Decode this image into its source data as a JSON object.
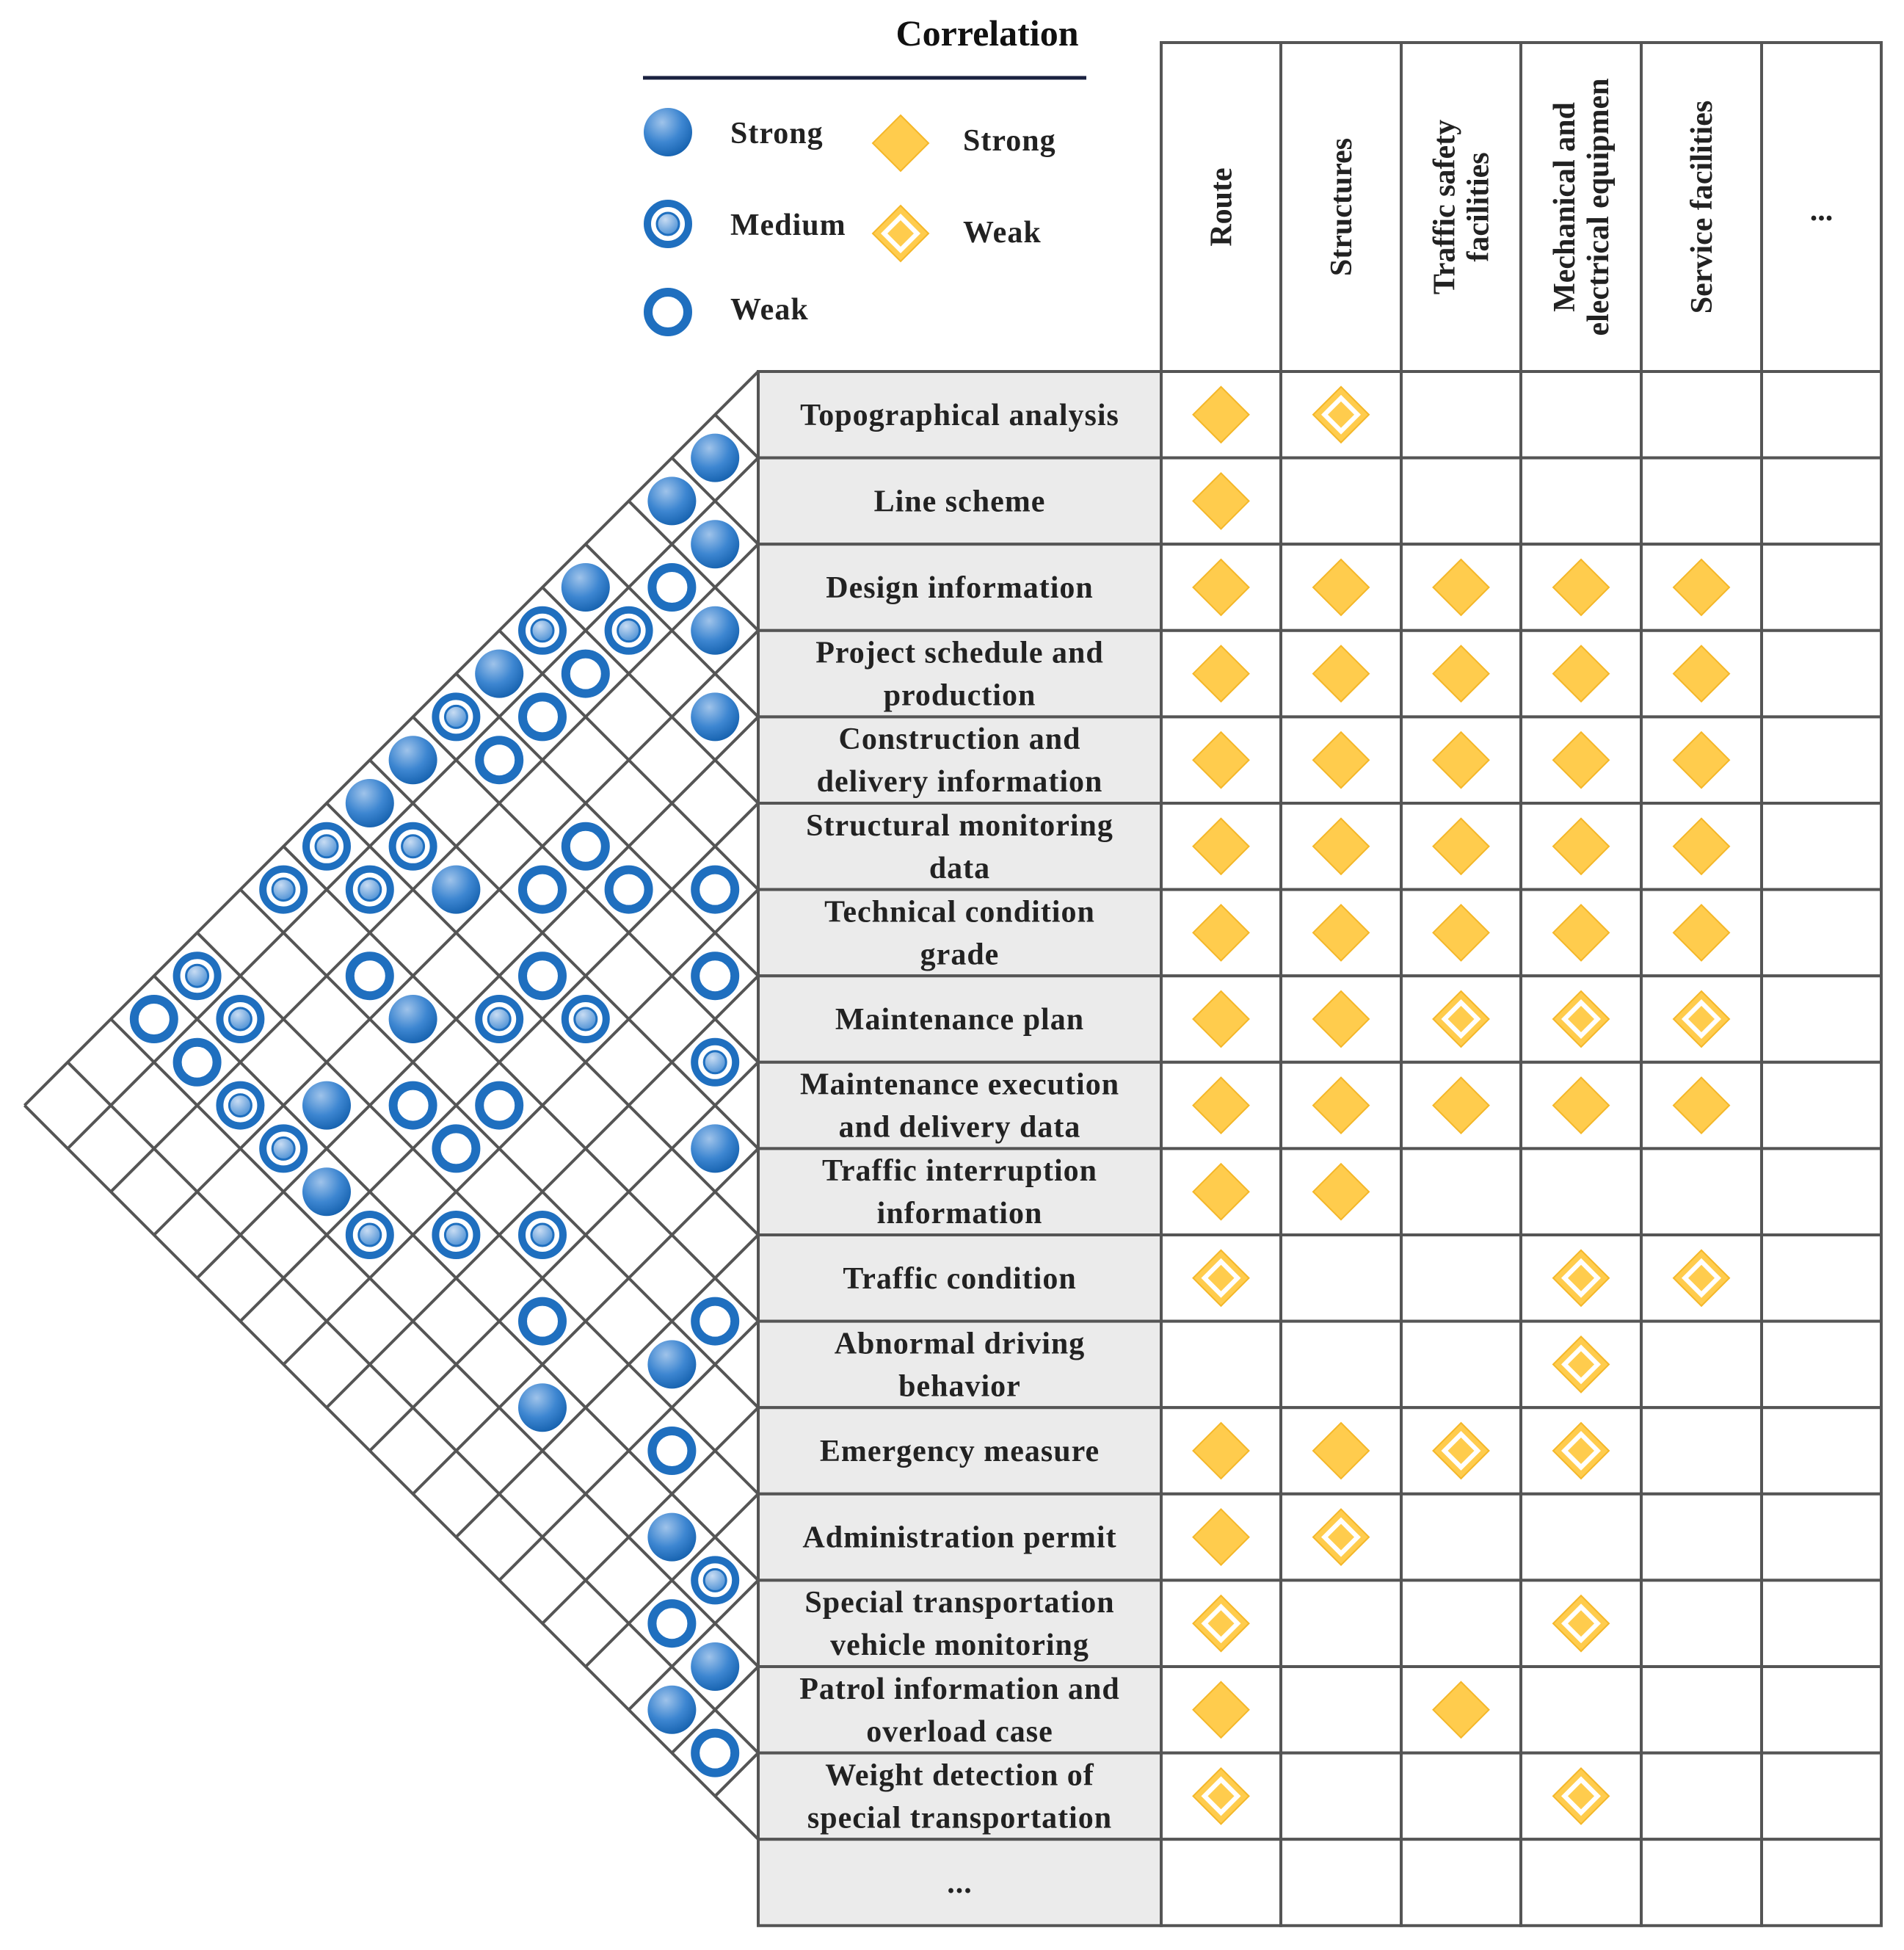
{
  "legend": {
    "title": "Correlation",
    "items": [
      {
        "symbol": "circle-strong",
        "label": "Strong"
      },
      {
        "symbol": "circle-medium",
        "label": "Medium"
      },
      {
        "symbol": "circle-weak",
        "label": "Weak"
      },
      {
        "symbol": "diamond-strong",
        "label": "Strong"
      },
      {
        "symbol": "diamond-weak",
        "label": "Weak"
      }
    ]
  },
  "columns": [
    {
      "label": [
        "Route"
      ]
    },
    {
      "label": [
        "Structures"
      ]
    },
    {
      "label": [
        "Traffic safety",
        "facilities"
      ]
    },
    {
      "label": [
        "Mechanical and",
        "electrical equipmen"
      ]
    },
    {
      "label": [
        "Service facilities"
      ]
    },
    {
      "label": [
        "..."
      ]
    }
  ],
  "rows": [
    {
      "label": [
        "Topographical analysis"
      ],
      "cells": [
        "S",
        "W",
        "",
        "",
        "",
        ""
      ]
    },
    {
      "label": [
        "Line scheme"
      ],
      "cells": [
        "S",
        "",
        "",
        "",
        "",
        ""
      ]
    },
    {
      "label": [
        "Design information"
      ],
      "cells": [
        "S",
        "S",
        "S",
        "S",
        "S",
        ""
      ]
    },
    {
      "label": [
        "Project schedule and",
        "production"
      ],
      "cells": [
        "S",
        "S",
        "S",
        "S",
        "S",
        ""
      ]
    },
    {
      "label": [
        "Construction and",
        "delivery information"
      ],
      "cells": [
        "S",
        "S",
        "S",
        "S",
        "S",
        ""
      ]
    },
    {
      "label": [
        "Structural monitoring",
        "data"
      ],
      "cells": [
        "S",
        "S",
        "S",
        "S",
        "S",
        ""
      ]
    },
    {
      "label": [
        "Technical condition",
        "grade"
      ],
      "cells": [
        "S",
        "S",
        "S",
        "S",
        "S",
        ""
      ]
    },
    {
      "label": [
        "Maintenance plan"
      ],
      "cells": [
        "S",
        "S",
        "W",
        "W",
        "W",
        ""
      ]
    },
    {
      "label": [
        "Maintenance execution",
        "and delivery data"
      ],
      "cells": [
        "S",
        "S",
        "S",
        "S",
        "S",
        ""
      ]
    },
    {
      "label": [
        "Traffic interruption",
        "information"
      ],
      "cells": [
        "S",
        "S",
        "",
        "",
        "",
        ""
      ]
    },
    {
      "label": [
        "Traffic condition"
      ],
      "cells": [
        "W",
        "",
        "",
        "W",
        "W",
        ""
      ]
    },
    {
      "label": [
        "Abnormal driving",
        "behavior"
      ],
      "cells": [
        "",
        "",
        "",
        "W",
        "",
        ""
      ]
    },
    {
      "label": [
        "Emergency measure"
      ],
      "cells": [
        "S",
        "S",
        "W",
        "W",
        "",
        ""
      ]
    },
    {
      "label": [
        "Administration permit"
      ],
      "cells": [
        "S",
        "W",
        "",
        "",
        "",
        ""
      ]
    },
    {
      "label": [
        "Special transportation",
        "vehicle monitoring"
      ],
      "cells": [
        "W",
        "",
        "",
        "W",
        "",
        ""
      ]
    },
    {
      "label": [
        "Patrol information and",
        "overload case"
      ],
      "cells": [
        "S",
        "",
        "S",
        "",
        "",
        ""
      ]
    },
    {
      "label": [
        "Weight detection of",
        "special transportation"
      ],
      "cells": [
        "W",
        "",
        "",
        "W",
        "",
        ""
      ]
    },
    {
      "label": [
        "..."
      ],
      "cells": [
        "",
        "",
        "",
        "",
        "",
        ""
      ]
    }
  ],
  "roof_correlations": [
    {
      "i": 0,
      "j": 1,
      "level": "strong"
    },
    {
      "i": 1,
      "j": 2,
      "level": "strong"
    },
    {
      "i": 0,
      "j": 2,
      "level": "strong"
    },
    {
      "i": 2,
      "j": 3,
      "level": "strong"
    },
    {
      "i": 1,
      "j": 3,
      "level": "weak"
    },
    {
      "i": 0,
      "j": 4,
      "level": "strong"
    },
    {
      "i": 1,
      "j": 4,
      "level": "medium"
    },
    {
      "i": 3,
      "j": 4,
      "level": "strong"
    },
    {
      "i": 1,
      "j": 5,
      "level": "weak"
    },
    {
      "i": 0,
      "j": 5,
      "level": "medium"
    },
    {
      "i": 1,
      "j": 6,
      "level": "weak"
    },
    {
      "i": 3,
      "j": 7,
      "level": "weak"
    },
    {
      "i": 1,
      "j": 7,
      "level": "weak"
    },
    {
      "i": 0,
      "j": 6,
      "level": "strong"
    },
    {
      "i": 3,
      "j": 8,
      "level": "weak"
    },
    {
      "i": 1,
      "j": 9,
      "level": "medium"
    },
    {
      "i": 2,
      "j": 9,
      "level": "strong"
    },
    {
      "i": 4,
      "j": 7,
      "level": "weak"
    },
    {
      "i": 5,
      "j": 6,
      "level": "weak"
    },
    {
      "i": 0,
      "j": 7,
      "level": "medium"
    },
    {
      "i": 6,
      "j": 7,
      "level": "weak"
    },
    {
      "i": 0,
      "j": 8,
      "level": "strong"
    },
    {
      "i": 5,
      "j": 9,
      "level": "medium"
    },
    {
      "i": 4,
      "j": 9,
      "level": "weak"
    },
    {
      "i": 7,
      "j": 8,
      "level": "medium"
    },
    {
      "i": 8,
      "j": 9,
      "level": "strong"
    },
    {
      "i": 0,
      "j": 9,
      "level": "strong"
    },
    {
      "i": 1,
      "j": 10,
      "level": "medium"
    },
    {
      "i": 0,
      "j": 10,
      "level": "medium"
    },
    {
      "i": 2,
      "j": 11,
      "level": "weak"
    },
    {
      "i": 4,
      "j": 10,
      "level": "medium"
    },
    {
      "i": 3,
      "j": 11,
      "level": "strong"
    },
    {
      "i": 5,
      "j": 11,
      "level": "weak"
    },
    {
      "i": 4,
      "j": 12,
      "level": "weak"
    },
    {
      "i": 5,
      "j": 12,
      "level": "weak"
    },
    {
      "i": 6,
      "j": 13,
      "level": "medium"
    },
    {
      "i": 0,
      "j": 11,
      "level": "medium"
    },
    {
      "i": 3,
      "j": 13,
      "level": "strong"
    },
    {
      "i": 1,
      "j": 13,
      "level": "medium"
    },
    {
      "i": 0,
      "j": 13,
      "level": "medium"
    },
    {
      "i": 2,
      "j": 14,
      "level": "medium"
    },
    {
      "i": 1,
      "j": 14,
      "level": "weak"
    },
    {
      "i": 0,
      "j": 14,
      "level": "weak"
    },
    {
      "i": 3,
      "j": 14,
      "level": "medium"
    },
    {
      "i": 5,
      "j": 14,
      "level": "medium"
    },
    {
      "i": 4,
      "j": 14,
      "level": "strong"
    },
    {
      "i": 7,
      "j": 12,
      "level": "medium"
    },
    {
      "i": 8,
      "j": 13,
      "level": "weak"
    },
    {
      "i": 9,
      "j": 14,
      "level": "strong"
    },
    {
      "i": 10,
      "j": 11,
      "level": "weak"
    },
    {
      "i": 10,
      "j": 12,
      "level": "strong"
    },
    {
      "i": 12,
      "j": 14,
      "level": "strong"
    },
    {
      "i": 13,
      "j": 14,
      "level": "medium"
    },
    {
      "i": 11,
      "j": 13,
      "level": "weak"
    },
    {
      "i": 14,
      "j": 15,
      "level": "strong"
    },
    {
      "i": 13,
      "j": 15,
      "level": "weak"
    },
    {
      "i": 14,
      "j": 16,
      "level": "strong"
    },
    {
      "i": 15,
      "j": 16,
      "level": "weak"
    }
  ],
  "colors": {
    "circle_blue": "#1f6fbf",
    "circle_light": "#8fb6e3",
    "diamond_fill": "#ffcc4d",
    "diamond_stroke": "#f4b729",
    "grid_line": "#555555",
    "label_bg": "#ebebeb",
    "legend_rule": "#1a2140"
  }
}
